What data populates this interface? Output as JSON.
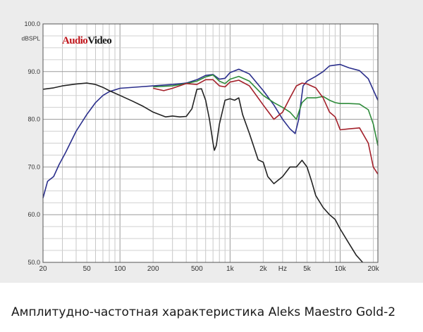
{
  "caption": "Амплитудно-частотная характеристика Aleks Maestro Gold-2",
  "chart_data": {
    "type": "line",
    "title": "",
    "logo": {
      "part1": "Audio",
      "part2": "Video"
    },
    "ylabel": "dBSPL",
    "xlabel": "Hz",
    "xscale": "log",
    "xlim": [
      20,
      22000
    ],
    "ylim": [
      50,
      100
    ],
    "grid": true,
    "y_ticks": [
      {
        "value": 100,
        "label": "100.0"
      },
      {
        "value": 90,
        "label": "90.0"
      },
      {
        "value": 80,
        "label": "80.0"
      },
      {
        "value": 70,
        "label": "70.0"
      },
      {
        "value": 60,
        "label": "60.0"
      },
      {
        "value": 50,
        "label": "50.0"
      }
    ],
    "x_ticks": [
      {
        "value": 20,
        "label": "20"
      },
      {
        "value": 50,
        "label": "50"
      },
      {
        "value": 100,
        "label": "100"
      },
      {
        "value": 200,
        "label": "200"
      },
      {
        "value": 500,
        "label": "500"
      },
      {
        "value": 1000,
        "label": "1k"
      },
      {
        "value": 2000,
        "label": "2k"
      },
      {
        "value": 5000,
        "label": "5k"
      },
      {
        "value": 10000,
        "label": "10k"
      },
      {
        "value": 20000,
        "label": "20k"
      }
    ],
    "series": [
      {
        "color": "#2b2f8c",
        "points": [
          [
            20,
            63.5
          ],
          [
            22,
            67
          ],
          [
            25,
            68
          ],
          [
            28,
            70.5
          ],
          [
            32,
            73
          ],
          [
            40,
            77.5
          ],
          [
            50,
            81
          ],
          [
            60,
            83.5
          ],
          [
            70,
            85
          ],
          [
            80,
            85.8
          ],
          [
            100,
            86.5
          ],
          [
            150,
            86.8
          ],
          [
            200,
            87
          ],
          [
            300,
            87.3
          ],
          [
            400,
            87.6
          ],
          [
            500,
            88.3
          ],
          [
            600,
            89.2
          ],
          [
            700,
            89.4
          ],
          [
            800,
            88.4
          ],
          [
            900,
            88.6
          ],
          [
            1000,
            89.8
          ],
          [
            1200,
            90.5
          ],
          [
            1500,
            89.5
          ],
          [
            2000,
            86
          ],
          [
            2500,
            83
          ],
          [
            3000,
            80
          ],
          [
            3500,
            78
          ],
          [
            3900,
            77
          ],
          [
            4200,
            80
          ],
          [
            4600,
            87
          ],
          [
            5000,
            88
          ],
          [
            6000,
            89
          ],
          [
            7000,
            90
          ],
          [
            8000,
            91.2
          ],
          [
            10000,
            91.5
          ],
          [
            12000,
            90.8
          ],
          [
            15000,
            90.2
          ],
          [
            18000,
            88.5
          ],
          [
            22000,
            84
          ]
        ]
      },
      {
        "color": "#2e8b3a",
        "points": [
          [
            200,
            86.8
          ],
          [
            300,
            87
          ],
          [
            400,
            87.5
          ],
          [
            500,
            88
          ],
          [
            600,
            88.9
          ],
          [
            700,
            89.3
          ],
          [
            800,
            88
          ],
          [
            900,
            87.5
          ],
          [
            1000,
            88.4
          ],
          [
            1200,
            89
          ],
          [
            1500,
            88
          ],
          [
            2000,
            85
          ],
          [
            2500,
            83.5
          ],
          [
            3000,
            82.5
          ],
          [
            3500,
            81.5
          ],
          [
            4000,
            80
          ],
          [
            4500,
            83.5
          ],
          [
            5000,
            84.5
          ],
          [
            6000,
            84.5
          ],
          [
            7000,
            84.8
          ],
          [
            8000,
            84
          ],
          [
            9000,
            83.5
          ],
          [
            10000,
            83.3
          ],
          [
            12000,
            83.3
          ],
          [
            15000,
            83.2
          ],
          [
            18000,
            82
          ],
          [
            20000,
            79
          ],
          [
            22000,
            74.5
          ]
        ]
      },
      {
        "color": "#a3202a",
        "points": [
          [
            200,
            86.5
          ],
          [
            250,
            86
          ],
          [
            300,
            86.5
          ],
          [
            400,
            87.5
          ],
          [
            500,
            87.3
          ],
          [
            600,
            88.3
          ],
          [
            700,
            88.3
          ],
          [
            800,
            87
          ],
          [
            900,
            86.8
          ],
          [
            1000,
            87.8
          ],
          [
            1200,
            88.2
          ],
          [
            1500,
            87
          ],
          [
            2000,
            83
          ],
          [
            2500,
            80
          ],
          [
            3000,
            81.5
          ],
          [
            3500,
            84.5
          ],
          [
            4000,
            87
          ],
          [
            4500,
            87.6
          ],
          [
            5000,
            87.4
          ],
          [
            6000,
            86.6
          ],
          [
            7000,
            84.5
          ],
          [
            8000,
            81.5
          ],
          [
            9000,
            80.5
          ],
          [
            10000,
            77.8
          ],
          [
            12000,
            78
          ],
          [
            15000,
            78.2
          ],
          [
            18000,
            75
          ],
          [
            20000,
            70
          ],
          [
            22000,
            68.5
          ]
        ]
      },
      {
        "color": "#222222",
        "points": [
          [
            20,
            86.3
          ],
          [
            25,
            86.6
          ],
          [
            30,
            87
          ],
          [
            40,
            87.4
          ],
          [
            50,
            87.6
          ],
          [
            60,
            87.3
          ],
          [
            70,
            86.7
          ],
          [
            80,
            86
          ],
          [
            100,
            85
          ],
          [
            130,
            83.8
          ],
          [
            160,
            82.8
          ],
          [
            200,
            81.5
          ],
          [
            260,
            80.5
          ],
          [
            300,
            80.7
          ],
          [
            350,
            80.5
          ],
          [
            400,
            80.6
          ],
          [
            450,
            82.2
          ],
          [
            500,
            86.3
          ],
          [
            550,
            86.4
          ],
          [
            600,
            84
          ],
          [
            650,
            80
          ],
          [
            700,
            75
          ],
          [
            720,
            73.5
          ],
          [
            750,
            74.5
          ],
          [
            800,
            79
          ],
          [
            900,
            84
          ],
          [
            1000,
            84.3
          ],
          [
            1100,
            84
          ],
          [
            1200,
            84.5
          ],
          [
            1300,
            81
          ],
          [
            1500,
            77
          ],
          [
            1800,
            71.5
          ],
          [
            2000,
            71
          ],
          [
            2200,
            68
          ],
          [
            2500,
            66.5
          ],
          [
            3000,
            68
          ],
          [
            3500,
            70
          ],
          [
            4000,
            70
          ],
          [
            4500,
            71.4
          ],
          [
            5000,
            70
          ],
          [
            5500,
            67
          ],
          [
            6000,
            64
          ],
          [
            7000,
            61.5
          ],
          [
            8000,
            60
          ],
          [
            9000,
            59
          ],
          [
            10000,
            57
          ],
          [
            12000,
            54
          ],
          [
            14000,
            51.5
          ],
          [
            16000,
            50
          ]
        ]
      }
    ]
  }
}
